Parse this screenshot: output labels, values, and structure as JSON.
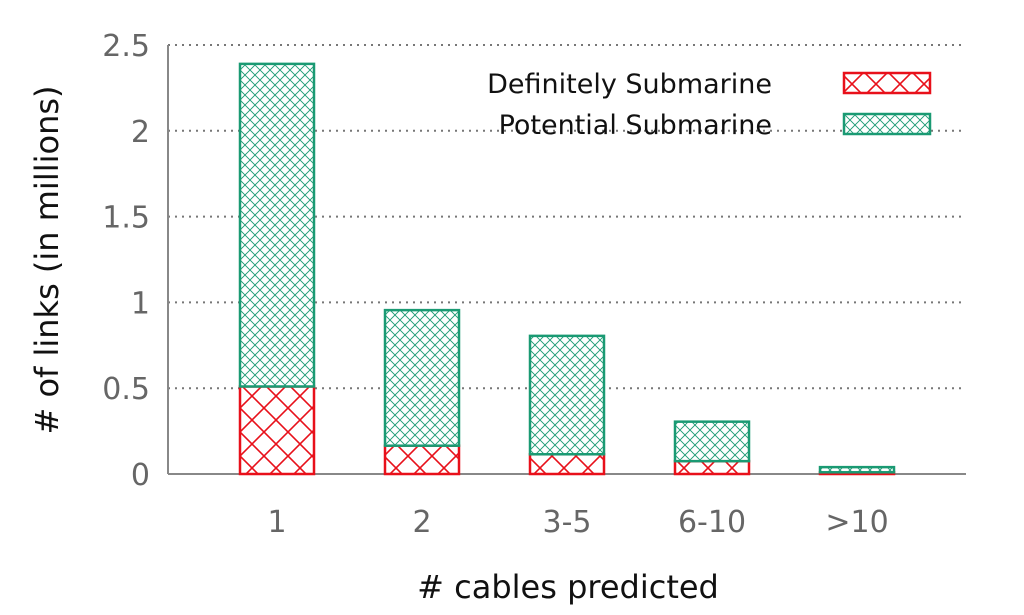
{
  "chart_data": {
    "type": "bar",
    "stacked": true,
    "categories": [
      "1",
      "2",
      "3-5",
      "6-10",
      ">10"
    ],
    "series": [
      {
        "name": "Definitely Submarine",
        "values": [
          0.51,
          0.165,
          0.115,
          0.075,
          0.01
        ],
        "color": "#e8101a",
        "pattern": "crosshatch-coarse"
      },
      {
        "name": "Potential Submarine",
        "values": [
          1.88,
          0.79,
          0.69,
          0.23,
          0.03
        ],
        "color": "#1a9a73",
        "pattern": "crosshatch-fine"
      }
    ],
    "title": "",
    "xlabel": "# cables predicted",
    "ylabel": "# of links (in millions)",
    "ylim": [
      0,
      2.5
    ],
    "yticks": [
      "0",
      "0.5",
      "1",
      "1.5",
      "2",
      "2.5"
    ],
    "grid": true,
    "legend_position": "top-right"
  }
}
